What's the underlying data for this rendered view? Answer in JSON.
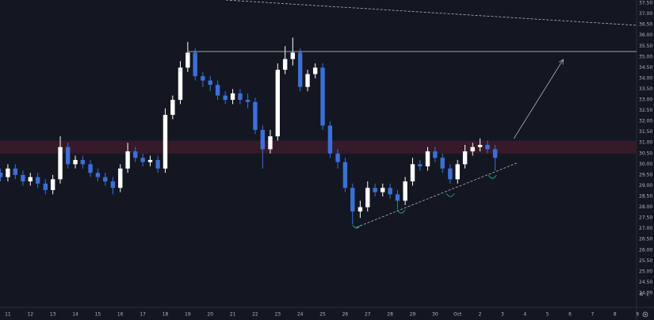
{
  "chart_data": {
    "type": "candlestick",
    "background": "#131722",
    "up_color": "#ffffff",
    "down_color": "#3d6fd9",
    "x": [
      -0.33,
      0,
      0.33,
      0.67,
      1,
      1.33,
      1.67,
      2,
      2.33,
      2.67,
      3,
      3.33,
      3.67,
      4,
      4.33,
      4.67,
      5,
      5.33,
      5.67,
      6,
      6.33,
      6.67,
      7,
      7.33,
      7.67,
      8,
      8.33,
      8.67,
      9,
      9.33,
      9.67,
      10,
      10.33,
      10.67,
      11,
      11.33,
      11.67,
      12,
      12.33,
      12.67,
      13,
      13.33,
      13.67,
      14,
      14.33,
      14.67,
      15,
      15.33,
      15.67,
      16,
      16.33,
      16.67,
      17,
      17.33,
      17.67,
      18,
      18.33,
      18.67,
      19,
      19.33,
      19.67,
      20,
      20.33,
      20.67,
      21,
      21.33,
      21.67
    ],
    "open": [
      29.6,
      29.4,
      29.8,
      29.5,
      29.2,
      29.4,
      29.1,
      28.8,
      29.3,
      30.8,
      30.0,
      30.2,
      30.0,
      29.6,
      29.4,
      29.2,
      28.9,
      29.8,
      30.6,
      30.3,
      30.1,
      30.2,
      29.8,
      32.3,
      33.0,
      34.5,
      35.2,
      34.1,
      33.9,
      33.7,
      33.2,
      33.0,
      33.3,
      33.0,
      32.9,
      31.6,
      30.7,
      31.3,
      34.4,
      34.9,
      35.2,
      33.6,
      34.2,
      34.5,
      31.8,
      30.5,
      30.1,
      28.9,
      27.8,
      28.0,
      28.9,
      28.7,
      28.9,
      28.6,
      28.3,
      29.2,
      30.0,
      29.9,
      30.6,
      30.3,
      29.8,
      29.3,
      30.0,
      30.6,
      30.8,
      30.9,
      30.7
    ],
    "high": [
      29.8,
      30.0,
      30.0,
      29.7,
      29.6,
      29.6,
      29.3,
      29.5,
      31.3,
      31.0,
      30.4,
      30.4,
      30.2,
      29.8,
      29.6,
      29.4,
      30.0,
      31.0,
      30.8,
      30.5,
      30.4,
      30.4,
      32.6,
      33.2,
      34.8,
      35.7,
      35.4,
      34.3,
      34.1,
      33.9,
      33.4,
      33.5,
      33.5,
      33.3,
      33.1,
      31.8,
      31.6,
      34.7,
      35.5,
      35.9,
      35.4,
      34.4,
      34.7,
      34.7,
      32.0,
      30.7,
      30.3,
      29.1,
      28.3,
      29.2,
      29.1,
      29.1,
      29.1,
      28.8,
      29.4,
      30.3,
      30.2,
      30.8,
      30.8,
      30.5,
      30.0,
      30.2,
      30.9,
      31.0,
      31.2,
      31.1,
      30.9
    ],
    "low": [
      29.2,
      29.2,
      29.3,
      29.0,
      29.0,
      28.9,
      28.6,
      28.6,
      29.1,
      29.8,
      29.8,
      29.8,
      29.4,
      29.2,
      29.0,
      28.6,
      28.7,
      29.6,
      30.1,
      29.9,
      29.9,
      29.6,
      29.6,
      32.1,
      32.8,
      34.3,
      33.9,
      33.6,
      33.4,
      33.0,
      32.8,
      32.8,
      32.8,
      32.6,
      31.4,
      29.8,
      30.5,
      31.1,
      34.2,
      34.6,
      33.4,
      33.4,
      34.0,
      31.6,
      30.3,
      29.8,
      28.7,
      27.2,
      27.5,
      27.8,
      28.5,
      28.5,
      28.4,
      27.9,
      28.1,
      29.0,
      29.7,
      29.7,
      30.1,
      29.6,
      29.1,
      29.1,
      29.8,
      30.4,
      30.6,
      30.5,
      29.7
    ],
    "close": [
      29.4,
      29.8,
      29.5,
      29.2,
      29.4,
      29.1,
      28.8,
      29.3,
      30.8,
      30.0,
      30.2,
      30.0,
      29.6,
      29.4,
      29.2,
      28.9,
      29.8,
      30.6,
      30.3,
      30.1,
      30.2,
      29.8,
      32.3,
      33.0,
      34.5,
      35.2,
      34.1,
      33.9,
      33.7,
      33.2,
      33.0,
      33.3,
      33.0,
      32.9,
      31.6,
      30.7,
      31.3,
      34.4,
      34.9,
      35.2,
      33.6,
      34.2,
      34.5,
      31.8,
      30.5,
      30.1,
      28.9,
      27.8,
      28.0,
      28.9,
      28.7,
      28.9,
      28.6,
      28.3,
      29.2,
      30.0,
      29.9,
      30.6,
      30.3,
      29.8,
      29.3,
      30.0,
      30.6,
      30.8,
      30.9,
      30.7,
      30.3
    ],
    "xlim": [
      -0.35,
      27.96
    ],
    "xticks": [
      {
        "value": 0,
        "label": "11"
      },
      {
        "value": 1,
        "label": "12"
      },
      {
        "value": 2,
        "label": "13"
      },
      {
        "value": 3,
        "label": "14"
      },
      {
        "value": 4,
        "label": "15"
      },
      {
        "value": 5,
        "label": "16"
      },
      {
        "value": 6,
        "label": "17"
      },
      {
        "value": 7,
        "label": "18"
      },
      {
        "value": 8,
        "label": "19"
      },
      {
        "value": 9,
        "label": "20"
      },
      {
        "value": 10,
        "label": "21"
      },
      {
        "value": 11,
        "label": "22"
      },
      {
        "value": 12,
        "label": "23"
      },
      {
        "value": 13,
        "label": "24"
      },
      {
        "value": 14,
        "label": "25"
      },
      {
        "value": 15,
        "label": "26"
      },
      {
        "value": 16,
        "label": "27"
      },
      {
        "value": 17,
        "label": "28"
      },
      {
        "value": 18,
        "label": "29"
      },
      {
        "value": 19,
        "label": "30"
      },
      {
        "value": 20,
        "label": "Oct"
      },
      {
        "value": 21,
        "label": "2"
      },
      {
        "value": 22,
        "label": "3"
      },
      {
        "value": 23,
        "label": "4"
      },
      {
        "value": 24,
        "label": "5"
      },
      {
        "value": 25,
        "label": "6"
      },
      {
        "value": 26,
        "label": "7"
      },
      {
        "value": 27,
        "label": "8"
      },
      {
        "value": 28,
        "label": "9"
      }
    ],
    "ylim": [
      23.63,
      37.65
    ],
    "yticks": [
      {
        "value": 37.5,
        "label": "37.50"
      },
      {
        "value": 37,
        "label": "37.00"
      },
      {
        "value": 36.5,
        "label": "36.50"
      },
      {
        "value": 36,
        "label": "36.00"
      },
      {
        "value": 35.5,
        "label": "35.50"
      },
      {
        "value": 35,
        "label": "35.00"
      },
      {
        "value": 34.5,
        "label": "34.50"
      },
      {
        "value": 34,
        "label": "34.00"
      },
      {
        "value": 33.5,
        "label": "33.50"
      },
      {
        "value": 33,
        "label": "33.00"
      },
      {
        "value": 32.5,
        "label": "32.50"
      },
      {
        "value": 32,
        "label": "32.00"
      },
      {
        "value": 31.5,
        "label": "31.50"
      },
      {
        "value": 31,
        "label": "31.00"
      },
      {
        "value": 30.5,
        "label": "30.50"
      },
      {
        "value": 30,
        "label": "30.00"
      },
      {
        "value": 29.5,
        "label": "29.50"
      },
      {
        "value": 29,
        "label": "29.00"
      },
      {
        "value": 28.5,
        "label": "28.50"
      },
      {
        "value": 28,
        "label": "28.00"
      },
      {
        "value": 27.5,
        "label": "27.50"
      },
      {
        "value": 27,
        "label": "27.00"
      },
      {
        "value": 26.5,
        "label": "26.50"
      },
      {
        "value": 26,
        "label": "26.00"
      },
      {
        "value": 25.5,
        "label": "25.50"
      },
      {
        "value": 25,
        "label": "25.00"
      },
      {
        "value": 24.5,
        "label": "24.50"
      },
      {
        "value": 24,
        "label": "24.00"
      }
    ],
    "grid": false,
    "zone": {
      "range": [
        30.5,
        31.1
      ],
      "color": "#3a1c2a"
    },
    "lines": [
      {
        "style": "solid",
        "color": "#b2b5be",
        "x": [
          8.0,
          27.96
        ],
        "y": [
          35.25,
          35.25
        ]
      },
      {
        "style": "dashed",
        "color": "#b2b5be",
        "x": [
          9.7,
          28.0
        ],
        "y": [
          37.65,
          36.47
        ]
      },
      {
        "style": "dashed",
        "color": "#b2b5be",
        "x": [
          15.5,
          22.7
        ],
        "y": [
          27.06,
          30.08
        ]
      },
      {
        "style": "arrow",
        "color": "#b2b5be",
        "x": [
          22.5,
          24.7
        ],
        "y": [
          31.19,
          34.88
        ]
      }
    ],
    "support_touches": {
      "color": "#26a69a",
      "x": [
        15.51,
        17.49,
        19.68,
        21.55
      ],
      "y": [
        27.06,
        27.76,
        28.53,
        29.38
      ]
    },
    "axis_buttons": [
      "A",
      "L"
    ]
  }
}
